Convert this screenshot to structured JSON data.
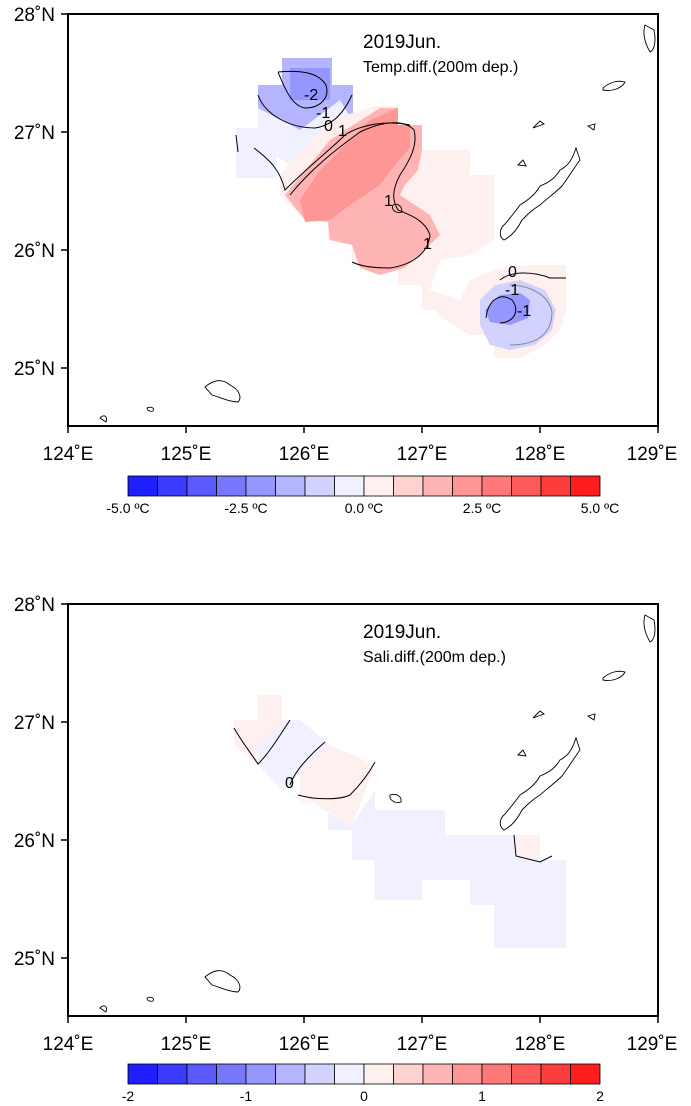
{
  "maps": [
    {
      "title": "2019Jun.",
      "subtitle": "Temp.diff.(200m dep.)",
      "lon_ticks": [
        "124˚E",
        "125˚E",
        "126˚E",
        "127˚E",
        "128˚E",
        "129˚E"
      ],
      "lat_ticks": [
        "28˚N",
        "27˚N",
        "26˚N",
        "25˚N"
      ],
      "contour_labels": [
        "-2",
        "-1",
        "0",
        "1",
        "1",
        "1",
        "0",
        "-1",
        "-1"
      ],
      "colorbar_labels": [
        "-5.0 ºC",
        "-2.5 ºC",
        "0.0 ºC",
        "2.5 ºC",
        "5.0 ºC"
      ]
    },
    {
      "title": "2019Jun.",
      "subtitle": "Sali.diff.(200m dep.)",
      "lon_ticks": [
        "124˚E",
        "125˚E",
        "126˚E",
        "127˚E",
        "128˚E",
        "129˚E"
      ],
      "lat_ticks": [
        "28˚N",
        "27˚N",
        "26˚N",
        "25˚N"
      ],
      "contour_labels": [
        "0"
      ],
      "colorbar_labels": [
        "-2",
        "-1",
        "0",
        "1",
        "2"
      ]
    }
  ],
  "colors": {
    "colorbar": [
      "#1e1eff",
      "#3c3cff",
      "#5a5aff",
      "#7878ff",
      "#9696ff",
      "#b4b4ff",
      "#d2d2ff",
      "#f0f0ff",
      "#fff0f0",
      "#ffd2d2",
      "#ffb4b4",
      "#ff9696",
      "#ff7878",
      "#ff5a5a",
      "#ff3c3c",
      "#ff1e1e"
    ]
  }
}
